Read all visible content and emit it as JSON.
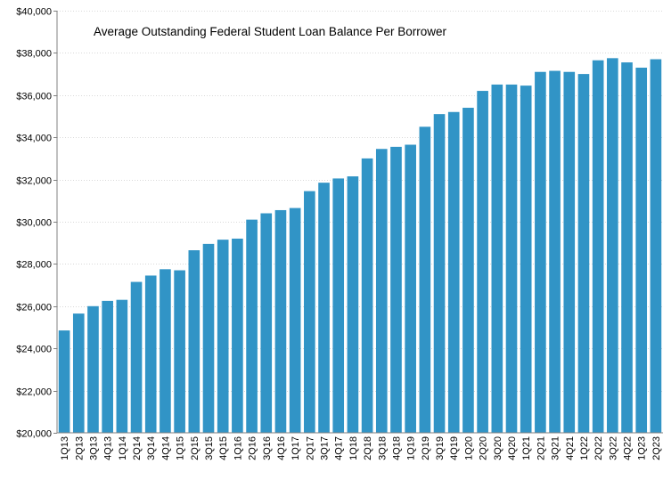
{
  "chart_data": {
    "type": "bar",
    "title": "Average Outstanding Federal Student Loan Balance Per Borrower",
    "xlabel": "",
    "ylabel": "",
    "ylim": [
      20000,
      40000
    ],
    "yticks": [
      20000,
      22000,
      24000,
      26000,
      28000,
      30000,
      32000,
      34000,
      36000,
      38000,
      40000
    ],
    "ytick_labels": [
      "$20,000",
      "$22,000",
      "$24,000",
      "$26,000",
      "$28,000",
      "$30,000",
      "$32,000",
      "$34,000",
      "$36,000",
      "$38,000",
      "$40,000"
    ],
    "grid": "horizontal",
    "bar_color": "#3194C6",
    "categories": [
      "1Q13",
      "2Q13",
      "3Q13",
      "4Q13",
      "1Q14",
      "2Q14",
      "3Q14",
      "4Q14",
      "1Q15",
      "2Q15",
      "3Q15",
      "4Q15",
      "1Q16",
      "2Q16",
      "3Q16",
      "4Q16",
      "1Q17",
      "2Q17",
      "3Q17",
      "4Q17",
      "1Q18",
      "2Q18",
      "3Q18",
      "4Q18",
      "1Q19",
      "2Q19",
      "3Q19",
      "4Q19",
      "1Q20",
      "2Q20",
      "3Q20",
      "4Q20",
      "1Q21",
      "2Q21",
      "3Q21",
      "4Q21",
      "1Q22",
      "2Q22",
      "3Q22",
      "4Q22",
      "1Q23",
      "2Q23"
    ],
    "values": [
      24850,
      25650,
      26000,
      26250,
      26300,
      27150,
      27450,
      27750,
      27700,
      28650,
      28950,
      29150,
      29200,
      30100,
      30400,
      30550,
      30650,
      31450,
      31850,
      32050,
      32150,
      33000,
      33450,
      33550,
      33650,
      34500,
      35100,
      35200,
      35400,
      36200,
      36500,
      36500,
      36450,
      37100,
      37150,
      37100,
      37000,
      37650,
      37750,
      37550,
      37300,
      37700
    ]
  }
}
